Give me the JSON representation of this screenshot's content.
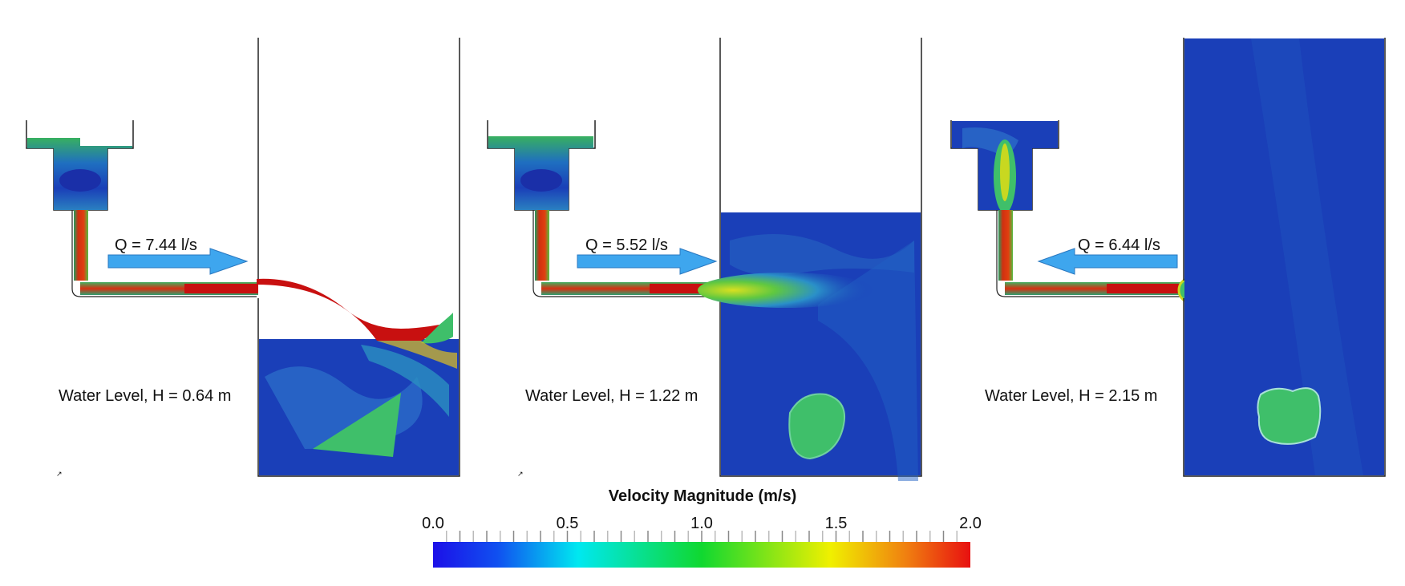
{
  "panels": [
    {
      "flow_label": "Q = 7.44 l/s",
      "flow_direction": "right",
      "level_label": "Water Level, H = 0.64 m",
      "water_level_m": 0.64
    },
    {
      "flow_label": "Q = 5.52 l/s",
      "flow_direction": "right",
      "level_label": "Water Level, H = 1.22 m",
      "water_level_m": 1.22
    },
    {
      "flow_label": "Q = 6.44 l/s",
      "flow_direction": "left",
      "level_label": "Water Level, H = 2.15 m",
      "water_level_m": 2.15
    }
  ],
  "colorbar": {
    "title": "Velocity Magnitude (m/s)",
    "ticks": [
      "0.0",
      "0.5",
      "1.0",
      "1.5",
      "2.0"
    ],
    "min": 0.0,
    "max": 2.0,
    "colormap": "rainbow-blue-red"
  },
  "colors": {
    "arrow": "#3ea6ee",
    "low_velocity": "#1e3fc0",
    "high_velocity": "#d01818",
    "mid_velocity": "#3fbf6a"
  }
}
